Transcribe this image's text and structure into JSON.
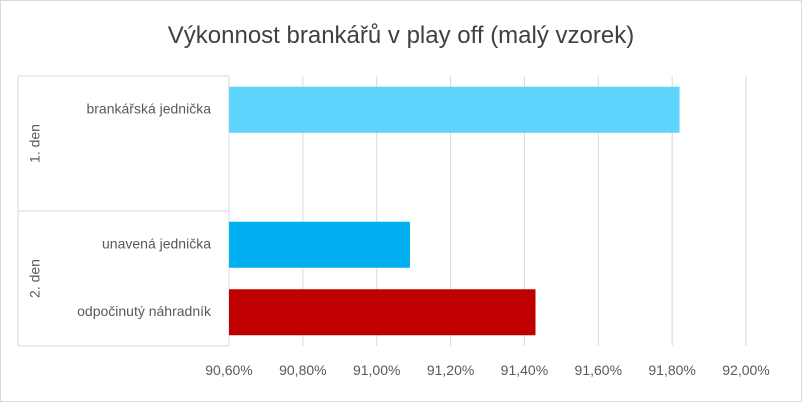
{
  "chart_data": {
    "type": "bar",
    "orientation": "horizontal",
    "title": "Výkonnost brankářů v play off (malý vzorek)",
    "groups": [
      {
        "label": "1. den",
        "items": [
          {
            "category": "brankářská jednička",
            "value": 91.82,
            "color": "#5fd4fd"
          }
        ]
      },
      {
        "label": "2. den",
        "items": [
          {
            "category": "unavená jednička",
            "value": 91.09,
            "color": "#00b0f0"
          },
          {
            "category": "odpočinutý náhradník",
            "value": 91.43,
            "color": "#c00000"
          }
        ]
      }
    ],
    "xlim": [
      90.6,
      92.0
    ],
    "ticks": [
      "90,60%",
      "90,80%",
      "91,00%",
      "91,20%",
      "91,40%",
      "91,60%",
      "91,80%",
      "92,00%"
    ],
    "grid": true,
    "legend": "none"
  }
}
